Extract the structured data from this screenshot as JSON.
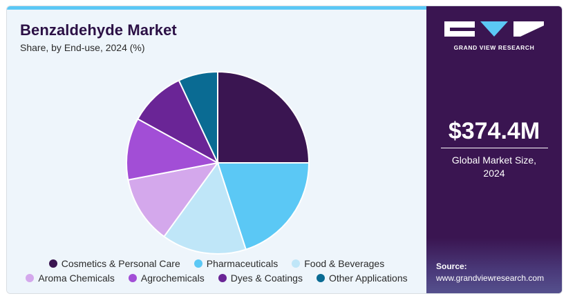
{
  "header": {
    "title": "Benzaldehyde Market",
    "subtitle": "Share, by End-use, 2024 (%)"
  },
  "brand": {
    "name": "GRAND VIEW RESEARCH",
    "logo_icon": "grand-view-research-logo"
  },
  "stat": {
    "value": "$374.4M",
    "caption_line1": "Global Market Size,",
    "caption_line2": "2024"
  },
  "source": {
    "label": "Source:",
    "url": "www.grandviewresearch.com"
  },
  "colors": {
    "panel": "#3a1551",
    "accent": "#5bc8f5",
    "title": "#2b1045"
  },
  "chart_data": {
    "type": "pie",
    "title": "Benzaldehyde Market",
    "subtitle": "Share, by End-use, 2024 (%)",
    "legend_position": "bottom",
    "start_angle_deg": 0,
    "direction": "clockwise",
    "slices": [
      {
        "name": "Cosmetics & Personal Care",
        "value": 25,
        "color": "#3a1551"
      },
      {
        "name": "Pharmaceuticals",
        "value": 20,
        "color": "#5bc8f5"
      },
      {
        "name": "Food & Beverages",
        "value": 15,
        "color": "#bfe6f8"
      },
      {
        "name": "Aroma Chemicals",
        "value": 12,
        "color": "#d4a8ec"
      },
      {
        "name": "Agrochemicals",
        "value": 11,
        "color": "#a24ed6"
      },
      {
        "name": "Dyes & Coatings",
        "value": 10,
        "color": "#6a2596"
      },
      {
        "name": "Other Applications",
        "value": 7,
        "color": "#0a6b93"
      }
    ]
  }
}
